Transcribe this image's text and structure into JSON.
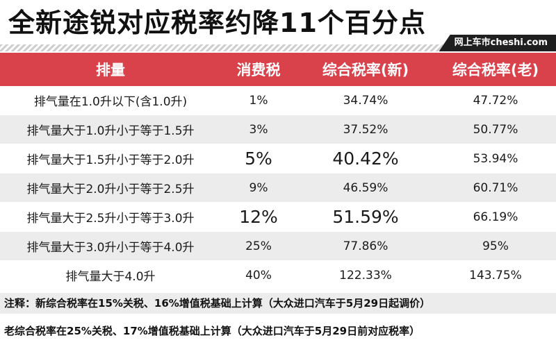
{
  "title": "全新途锐对应税率约降11个百分点",
  "source": "网上车市cheshi.com",
  "table": {
    "headers": [
      "排量",
      "消费税",
      "综合税率(新)",
      "综合税率(老)"
    ],
    "rows": [
      [
        "排气量在1.0升以下(含1.0升)",
        "1%",
        "34.74%",
        "47.72%"
      ],
      [
        "排气量大于1.0升小于等于1.5升",
        "3%",
        "37.52%",
        "50.77%"
      ],
      [
        "排气量大于1.5升小于等于2.0升",
        "5%",
        "40.42%",
        "53.94%"
      ],
      [
        "排气量大于2.0升小于等于2.5升",
        "9%",
        "46.59%",
        "60.71%"
      ],
      [
        "排气量大于2.5升小于等于3.0升",
        "12%",
        "51.59%",
        "66.19%"
      ],
      [
        "排气量大于3.0升小于等于4.0升",
        "25%",
        "77.86%",
        "95%"
      ],
      [
        "排气量大于4.0升",
        "40%",
        "122.33%",
        "143.75%"
      ]
    ]
  },
  "notes": [
    "注释：新综合税率在15%关税、16%增值税基础上计算（大众进口汽车于5月29日起调价）",
    "老综合税率在25%关税、17%增值税基础上计算（大众进口汽车于5月29日前对应税率）"
  ]
}
